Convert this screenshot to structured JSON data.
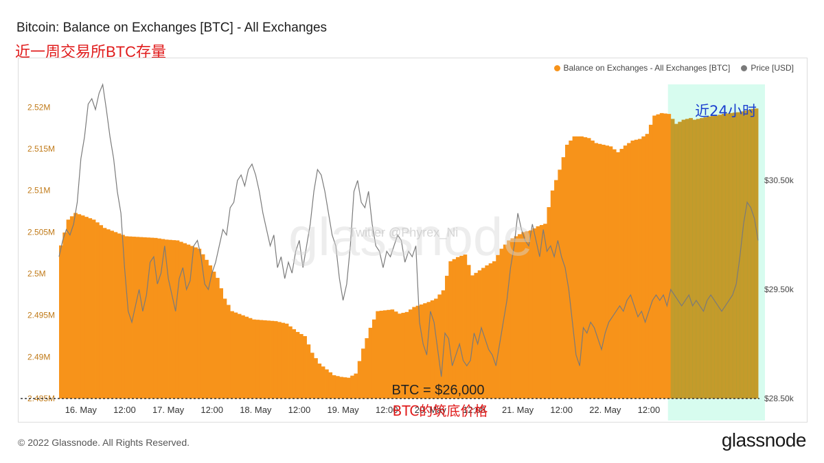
{
  "header": {
    "title": "Bitcoin: Balance on Exchanges [BTC] - All Exchanges",
    "subtitle": "近一周交易所BTC存量"
  },
  "footer": {
    "copyright": "© 2022 Glassnode. All Rights Reserved.",
    "logo": "glassnode"
  },
  "watermark": {
    "text": "glassnode",
    "credit": "Twitter @Phyrex_Ni"
  },
  "colors": {
    "balance": "#f7931a",
    "price": "#7a7a7a",
    "highlight": "#c9fbe9",
    "annotation_red": "#e01b1b",
    "annotation_blue": "#1a3fcf",
    "left_ticks": "#c07a18"
  },
  "chart_data": {
    "type": "bar+line",
    "legend": {
      "position": "top-right",
      "items": [
        {
          "name": "Balance on Exchanges - All Exchanges [BTC]",
          "color": "#f7931a"
        },
        {
          "name": "Price [USD]",
          "color": "#7a7a7a"
        }
      ]
    },
    "x_ticks": [
      "16. May",
      "12:00",
      "17. May",
      "12:00",
      "18. May",
      "12:00",
      "19. May",
      "12:00",
      "20. May",
      "12:00",
      "21. May",
      "12:00",
      "22. May",
      "12:00"
    ],
    "x_range_hours": [
      0,
      174
    ],
    "y_left": {
      "label": "Balance on Exchanges [BTC]",
      "ticks": [
        "2.485M",
        "2.49M",
        "2.495M",
        "2.5M",
        "2.505M",
        "2.51M",
        "2.515M",
        "2.52M"
      ],
      "range": [
        2485000,
        2523000
      ]
    },
    "y_right": {
      "label": "Price [USD]",
      "ticks": [
        "$28.50k",
        "$29.50k",
        "$30.50k"
      ],
      "range": [
        28500,
        31400
      ]
    },
    "balance_series": {
      "name": "Balance on Exchanges - All Exchanges [BTC]",
      "points": [
        [
          0,
          2503400
        ],
        [
          2,
          2506500
        ],
        [
          4,
          2507300
        ],
        [
          6,
          2507000
        ],
        [
          9,
          2506500
        ],
        [
          12,
          2505500
        ],
        [
          15,
          2505000
        ],
        [
          18,
          2504500
        ],
        [
          22,
          2504400
        ],
        [
          26,
          2504300
        ],
        [
          29,
          2504100
        ],
        [
          32,
          2504000
        ],
        [
          35,
          2503500
        ],
        [
          38,
          2503000
        ],
        [
          41,
          2501000
        ],
        [
          43,
          2499500
        ],
        [
          45,
          2497000
        ],
        [
          47,
          2495500
        ],
        [
          50,
          2495000
        ],
        [
          53,
          2494500
        ],
        [
          56,
          2494400
        ],
        [
          59,
          2494300
        ],
        [
          62,
          2494000
        ],
        [
          65,
          2493000
        ],
        [
          67,
          2492500
        ],
        [
          69,
          2490500
        ],
        [
          71,
          2489200
        ],
        [
          73,
          2488500
        ],
        [
          75,
          2487800
        ],
        [
          77,
          2487600
        ],
        [
          79,
          2487500
        ],
        [
          81,
          2488000
        ],
        [
          83,
          2491000
        ],
        [
          85,
          2493500
        ],
        [
          87,
          2495500
        ],
        [
          89,
          2495600
        ],
        [
          91,
          2495700
        ],
        [
          93,
          2495200
        ],
        [
          95,
          2495400
        ],
        [
          97,
          2496000
        ],
        [
          99,
          2496300
        ],
        [
          101,
          2496600
        ],
        [
          103,
          2497000
        ],
        [
          105,
          2498000
        ],
        [
          107,
          2501500
        ],
        [
          109,
          2502000
        ],
        [
          111,
          2502300
        ],
        [
          113,
          2499800
        ],
        [
          115,
          2500400
        ],
        [
          117,
          2501000
        ],
        [
          119,
          2501500
        ],
        [
          121,
          2503000
        ],
        [
          123,
          2504000
        ],
        [
          125,
          2504500
        ],
        [
          127,
          2505000
        ],
        [
          129,
          2505200
        ],
        [
          131,
          2505700
        ],
        [
          133,
          2506000
        ],
        [
          135,
          2510000
        ],
        [
          137,
          2512500
        ],
        [
          139,
          2515500
        ],
        [
          141,
          2516500
        ],
        [
          143,
          2516500
        ],
        [
          145,
          2516300
        ],
        [
          147,
          2515700
        ],
        [
          149,
          2515500
        ],
        [
          151,
          2515300
        ],
        [
          153,
          2514600
        ],
        [
          155,
          2515400
        ],
        [
          157,
          2516000
        ],
        [
          159,
          2516200
        ],
        [
          161,
          2516800
        ],
        [
          163,
          2519000
        ],
        [
          165,
          2519300
        ],
        [
          167,
          2519200
        ],
        [
          169,
          2518000
        ],
        [
          171,
          2518500
        ],
        [
          173,
          2518700
        ],
        [
          174,
          2518500
        ],
        [
          176,
          2518700
        ],
        [
          178,
          2518900
        ],
        [
          180,
          2519000
        ],
        [
          182,
          2519200
        ],
        [
          184,
          2519300
        ],
        [
          186,
          2519400
        ],
        [
          188,
          2519600
        ],
        [
          190,
          2519800
        ],
        [
          192,
          2519900
        ]
      ]
    },
    "price_series": {
      "name": "Price [USD]",
      "points": [
        [
          0,
          29800
        ],
        [
          1,
          29950
        ],
        [
          2,
          30050
        ],
        [
          3,
          30000
        ],
        [
          4,
          30100
        ],
        [
          5,
          30300
        ],
        [
          6,
          30700
        ],
        [
          7,
          30900
        ],
        [
          8,
          31200
        ],
        [
          9,
          31250
        ],
        [
          10,
          31150
        ],
        [
          11,
          31300
        ],
        [
          12,
          31380
        ],
        [
          13,
          31150
        ],
        [
          14,
          30900
        ],
        [
          15,
          30700
        ],
        [
          16,
          30400
        ],
        [
          17,
          30200
        ],
        [
          18,
          29700
        ],
        [
          19,
          29300
        ],
        [
          20,
          29200
        ],
        [
          21,
          29350
        ],
        [
          22,
          29500
        ],
        [
          23,
          29300
        ],
        [
          24,
          29450
        ],
        [
          25,
          29750
        ],
        [
          26,
          29800
        ],
        [
          27,
          29550
        ],
        [
          28,
          29650
        ],
        [
          29,
          29900
        ],
        [
          30,
          29600
        ],
        [
          31,
          29450
        ],
        [
          32,
          29300
        ],
        [
          33,
          29600
        ],
        [
          34,
          29700
        ],
        [
          35,
          29500
        ],
        [
          36,
          29580
        ],
        [
          37,
          29900
        ],
        [
          38,
          29950
        ],
        [
          39,
          29800
        ],
        [
          40,
          29550
        ],
        [
          41,
          29500
        ],
        [
          42,
          29650
        ],
        [
          43,
          29750
        ],
        [
          44,
          29900
        ],
        [
          45,
          30050
        ],
        [
          46,
          30000
        ],
        [
          47,
          30250
        ],
        [
          48,
          30300
        ],
        [
          49,
          30500
        ],
        [
          50,
          30550
        ],
        [
          51,
          30450
        ],
        [
          52,
          30600
        ],
        [
          53,
          30650
        ],
        [
          54,
          30550
        ],
        [
          55,
          30400
        ],
        [
          56,
          30200
        ],
        [
          57,
          30050
        ],
        [
          58,
          29900
        ],
        [
          59,
          30000
        ],
        [
          60,
          29700
        ],
        [
          61,
          29800
        ],
        [
          62,
          29600
        ],
        [
          63,
          29750
        ],
        [
          64,
          29650
        ],
        [
          65,
          29850
        ],
        [
          66,
          29950
        ],
        [
          67,
          29700
        ],
        [
          68,
          29900
        ],
        [
          69,
          30100
        ],
        [
          70,
          30400
        ],
        [
          71,
          30600
        ],
        [
          72,
          30550
        ],
        [
          73,
          30400
        ],
        [
          74,
          30200
        ],
        [
          75,
          30000
        ],
        [
          76,
          29900
        ],
        [
          77,
          29600
        ],
        [
          78,
          29400
        ],
        [
          79,
          29550
        ],
        [
          80,
          29900
        ],
        [
          81,
          30400
        ],
        [
          82,
          30500
        ],
        [
          83,
          30300
        ],
        [
          84,
          30250
        ],
        [
          85,
          30400
        ],
        [
          86,
          30100
        ],
        [
          87,
          29900
        ],
        [
          88,
          29850
        ],
        [
          89,
          29700
        ],
        [
          90,
          29850
        ],
        [
          91,
          29800
        ],
        [
          92,
          29900
        ],
        [
          93,
          30000
        ],
        [
          94,
          29950
        ],
        [
          95,
          29750
        ],
        [
          96,
          29850
        ],
        [
          97,
          29800
        ],
        [
          98,
          29900
        ],
        [
          99,
          29200
        ],
        [
          100,
          29000
        ],
        [
          101,
          28900
        ],
        [
          102,
          29300
        ],
        [
          103,
          29200
        ],
        [
          104,
          28950
        ],
        [
          105,
          28700
        ],
        [
          106,
          29100
        ],
        [
          107,
          29050
        ],
        [
          108,
          28800
        ],
        [
          109,
          28900
        ],
        [
          110,
          29000
        ],
        [
          111,
          28850
        ],
        [
          112,
          28800
        ],
        [
          113,
          28850
        ],
        [
          114,
          29100
        ],
        [
          115,
          29000
        ],
        [
          116,
          29150
        ],
        [
          117,
          29050
        ],
        [
          118,
          28950
        ],
        [
          119,
          28900
        ],
        [
          120,
          28800
        ],
        [
          121,
          29000
        ],
        [
          122,
          29200
        ],
        [
          123,
          29400
        ],
        [
          124,
          29700
        ],
        [
          125,
          29900
        ],
        [
          126,
          30200
        ],
        [
          127,
          30050
        ],
        [
          128,
          29950
        ],
        [
          129,
          29900
        ],
        [
          130,
          30100
        ],
        [
          131,
          29950
        ],
        [
          132,
          29800
        ],
        [
          133,
          30050
        ],
        [
          134,
          29850
        ],
        [
          135,
          29900
        ],
        [
          136,
          29800
        ],
        [
          137,
          29950
        ],
        [
          138,
          29800
        ],
        [
          139,
          29700
        ],
        [
          140,
          29500
        ],
        [
          141,
          29200
        ],
        [
          142,
          28900
        ],
        [
          143,
          28800
        ],
        [
          144,
          29150
        ],
        [
          145,
          29100
        ],
        [
          146,
          29200
        ],
        [
          147,
          29150
        ],
        [
          148,
          29050
        ],
        [
          149,
          28950
        ],
        [
          150,
          29100
        ],
        [
          151,
          29200
        ],
        [
          152,
          29250
        ],
        [
          153,
          29300
        ],
        [
          154,
          29350
        ],
        [
          155,
          29300
        ],
        [
          156,
          29400
        ],
        [
          157,
          29450
        ],
        [
          158,
          29350
        ],
        [
          159,
          29250
        ],
        [
          160,
          29300
        ],
        [
          161,
          29200
        ],
        [
          162,
          29300
        ],
        [
          163,
          29400
        ],
        [
          164,
          29450
        ],
        [
          165,
          29400
        ],
        [
          166,
          29450
        ],
        [
          167,
          29350
        ],
        [
          168,
          29500
        ],
        [
          169,
          29450
        ],
        [
          170,
          29400
        ],
        [
          171,
          29350
        ],
        [
          172,
          29400
        ],
        [
          173,
          29450
        ],
        [
          174,
          29350
        ],
        [
          175,
          29400
        ],
        [
          176,
          29350
        ],
        [
          177,
          29300
        ],
        [
          178,
          29400
        ],
        [
          179,
          29450
        ],
        [
          180,
          29400
        ],
        [
          181,
          29350
        ],
        [
          182,
          29300
        ],
        [
          183,
          29350
        ],
        [
          184,
          29400
        ],
        [
          185,
          29450
        ],
        [
          186,
          29550
        ],
        [
          187,
          29800
        ],
        [
          188,
          30100
        ],
        [
          189,
          30300
        ],
        [
          190,
          30250
        ],
        [
          191,
          30150
        ],
        [
          192,
          29950
        ]
      ]
    },
    "highlight": {
      "label": "近24小时",
      "from_hour": 168,
      "to_hour": 192
    },
    "reference_line": {
      "price": 28500,
      "label_top": "BTC = $26,000",
      "label_bottom": "BTC的筑底价格"
    }
  }
}
